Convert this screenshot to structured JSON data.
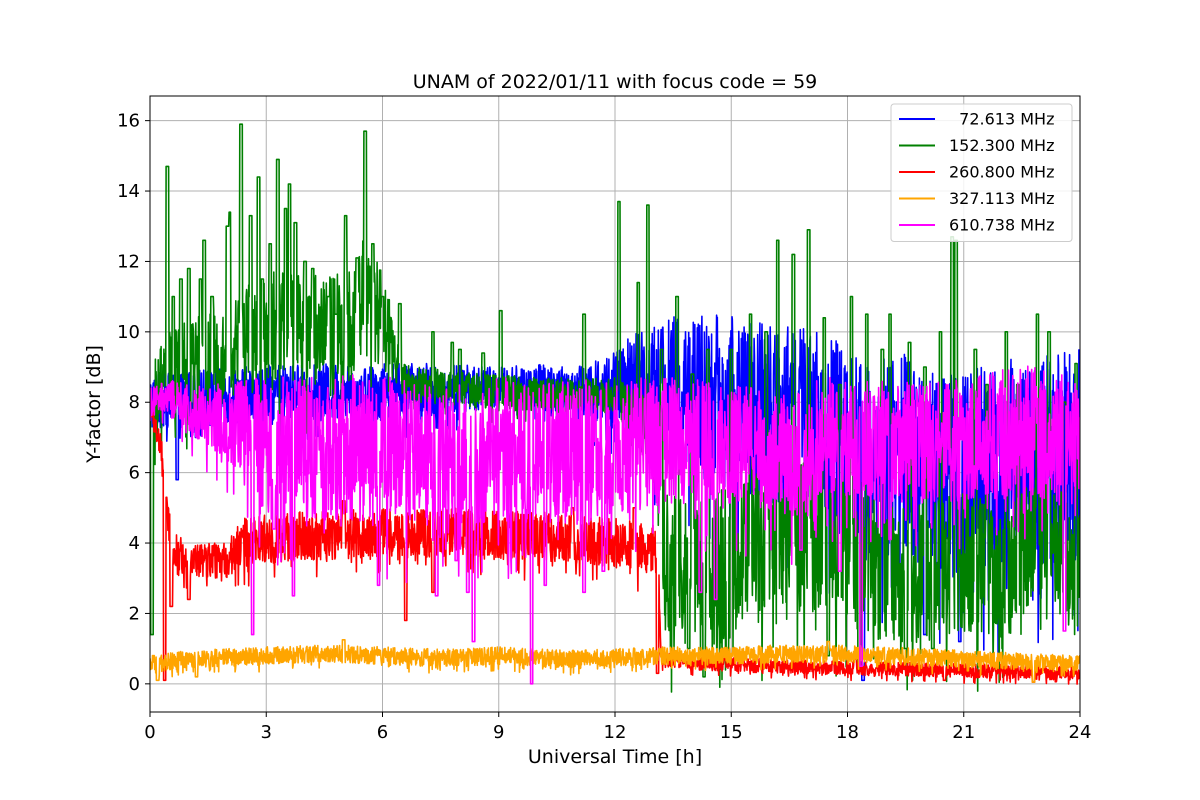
{
  "chart_data": {
    "type": "line",
    "title": "UNAM of 2022/01/11 with focus code = 59",
    "xlabel": "Universal Time [h]",
    "ylabel": "Y-factor [dB]",
    "xlim": [
      0,
      24
    ],
    "ylim": [
      -0.8,
      16.7
    ],
    "xticks": [
      0,
      3,
      6,
      9,
      12,
      15,
      18,
      21,
      24
    ],
    "yticks": [
      0,
      2,
      4,
      6,
      8,
      10,
      12,
      14,
      16
    ],
    "grid": true,
    "legend_position": "top-right",
    "series": [
      {
        "name": "  72.613 MHz",
        "color": "#0000ff",
        "baseline": [
          [
            0,
            8.0
          ],
          [
            1,
            8.1
          ],
          [
            2,
            8.2
          ],
          [
            4,
            8.3
          ],
          [
            6,
            8.3
          ],
          [
            8,
            8.4
          ],
          [
            9,
            8.4
          ],
          [
            10,
            8.5
          ],
          [
            11,
            8.4
          ],
          [
            12,
            8.3
          ],
          [
            13,
            8.4
          ],
          [
            15,
            8.0
          ],
          [
            17,
            7.6
          ],
          [
            18,
            7.0
          ],
          [
            19,
            6.5
          ],
          [
            20,
            6.2
          ],
          [
            21,
            6.0
          ],
          [
            22,
            6.2
          ],
          [
            24,
            6.5
          ]
        ],
        "band": [
          [
            0,
            0.8
          ],
          [
            6,
            0.8
          ],
          [
            8,
            0.7
          ],
          [
            9,
            0.6
          ],
          [
            11,
            0.6
          ],
          [
            12,
            1.2
          ],
          [
            13,
            2.0
          ],
          [
            15,
            2.5
          ],
          [
            17,
            2.5
          ],
          [
            19,
            3.0
          ],
          [
            21,
            3.0
          ],
          [
            24,
            3.0
          ]
        ],
        "spikes": [
          [
            0.7,
            5.8
          ],
          [
            1.2,
            7.0
          ],
          [
            16.7,
            4.0
          ],
          [
            20.0,
            1.4
          ],
          [
            20.9,
            1.2
          ],
          [
            18.4,
            0.1
          ]
        ]
      },
      {
        "name": "152.300 MHz",
        "color": "#008000",
        "baseline": [
          [
            0,
            7.5
          ],
          [
            0.3,
            8.6
          ],
          [
            1,
            9.0
          ],
          [
            2,
            9.5
          ],
          [
            3,
            10.0
          ],
          [
            4,
            10.2
          ],
          [
            5,
            9.8
          ],
          [
            5.5,
            11.0
          ],
          [
            6,
            10.5
          ],
          [
            6.5,
            8.6
          ],
          [
            8,
            8.4
          ],
          [
            10,
            8.2
          ],
          [
            12,
            8.2
          ],
          [
            13,
            7.0
          ],
          [
            13.3,
            3.5
          ],
          [
            14,
            3.0
          ],
          [
            15,
            3.5
          ],
          [
            16,
            4.0
          ],
          [
            17,
            4.5
          ],
          [
            18,
            4.0
          ],
          [
            19,
            3.0
          ],
          [
            20,
            3.2
          ],
          [
            21,
            3.5
          ],
          [
            22,
            3.0
          ],
          [
            23,
            4.5
          ],
          [
            24,
            3.0
          ]
        ],
        "band": [
          [
            0,
            1.2
          ],
          [
            2,
            1.5
          ],
          [
            3,
            1.8
          ],
          [
            5,
            1.8
          ],
          [
            6,
            1.5
          ],
          [
            6.5,
            0.5
          ],
          [
            12,
            0.5
          ],
          [
            13,
            1.0
          ],
          [
            13.3,
            2.0
          ],
          [
            15,
            2.2
          ],
          [
            17,
            2.5
          ],
          [
            19,
            2.0
          ],
          [
            21,
            2.0
          ],
          [
            24,
            1.8
          ]
        ],
        "spikes": [
          [
            0.45,
            14.7
          ],
          [
            0.6,
            11.0
          ],
          [
            0.8,
            11.5
          ],
          [
            1.0,
            11.8
          ],
          [
            1.3,
            11.5
          ],
          [
            1.4,
            12.6
          ],
          [
            1.6,
            11.0
          ],
          [
            2.0,
            13.0
          ],
          [
            2.05,
            13.4
          ],
          [
            2.35,
            15.9
          ],
          [
            2.6,
            13.3
          ],
          [
            2.8,
            14.4
          ],
          [
            2.9,
            11.5
          ],
          [
            3.1,
            12.5
          ],
          [
            3.3,
            14.9
          ],
          [
            3.5,
            13.5
          ],
          [
            3.6,
            14.2
          ],
          [
            3.75,
            13.1
          ],
          [
            4.0,
            12.0
          ],
          [
            4.2,
            11.8
          ],
          [
            4.6,
            11.0
          ],
          [
            4.8,
            10.5
          ],
          [
            5.05,
            13.3
          ],
          [
            5.35,
            12.1
          ],
          [
            5.55,
            15.7
          ],
          [
            5.75,
            12.5
          ],
          [
            6.0,
            11.0
          ],
          [
            6.45,
            10.8
          ],
          [
            7.3,
            10.0
          ],
          [
            7.8,
            9.7
          ],
          [
            8.0,
            9.5
          ],
          [
            8.6,
            9.4
          ],
          [
            9.05,
            10.6
          ],
          [
            11.2,
            10.5
          ],
          [
            11.6,
            8.0
          ],
          [
            12.1,
            13.7
          ],
          [
            12.6,
            11.4
          ],
          [
            12.85,
            13.6
          ],
          [
            13.2,
            9.5
          ],
          [
            13.6,
            11.0
          ],
          [
            14.0,
            8.8
          ],
          [
            14.4,
            9.5
          ],
          [
            15.0,
            9.5
          ],
          [
            15.5,
            10.5
          ],
          [
            15.9,
            10.0
          ],
          [
            16.2,
            12.6
          ],
          [
            16.6,
            12.2
          ],
          [
            17.0,
            12.9
          ],
          [
            17.4,
            10.4
          ],
          [
            17.8,
            8.5
          ],
          [
            18.1,
            11.0
          ],
          [
            18.5,
            10.5
          ],
          [
            18.9,
            9.5
          ],
          [
            19.1,
            10.5
          ],
          [
            19.6,
            9.7
          ],
          [
            20.0,
            9.0
          ],
          [
            20.4,
            10.0
          ],
          [
            20.7,
            12.7
          ],
          [
            20.8,
            12.6
          ],
          [
            21.3,
            9.5
          ],
          [
            21.6,
            8.5
          ],
          [
            22.1,
            10.0
          ],
          [
            22.4,
            8.5
          ],
          [
            22.9,
            10.5
          ],
          [
            23.2,
            10.0
          ],
          [
            23.6,
            8.0
          ],
          [
            13.9,
            1.0
          ],
          [
            14.3,
            0.2
          ],
          [
            14.9,
            0.5
          ],
          [
            17.5,
            0.8
          ],
          [
            18.3,
            0.5
          ],
          [
            19.5,
            1.0
          ],
          [
            20.2,
            1.0
          ],
          [
            0.05,
            1.4
          ],
          [
            23.9,
            9.1
          ]
        ]
      },
      {
        "name": "260.800 MHz",
        "color": "#ff0000",
        "baseline": [
          [
            0,
            8.0
          ],
          [
            0.3,
            6.5
          ],
          [
            0.4,
            5.0
          ],
          [
            0.6,
            3.8
          ],
          [
            1,
            3.5
          ],
          [
            2,
            3.5
          ],
          [
            2.3,
            4.0
          ],
          [
            3,
            4.1
          ],
          [
            4,
            4.2
          ],
          [
            6,
            4.3
          ],
          [
            8,
            4.3
          ],
          [
            9,
            4.2
          ],
          [
            10,
            4.2
          ],
          [
            12,
            4.0
          ],
          [
            13.1,
            3.8
          ],
          [
            13.2,
            0.7
          ],
          [
            14,
            0.6
          ],
          [
            16,
            0.5
          ],
          [
            18,
            0.45
          ],
          [
            20,
            0.4
          ],
          [
            22,
            0.35
          ],
          [
            24,
            0.3
          ]
        ],
        "band": [
          [
            0,
            0.4
          ],
          [
            0.6,
            0.5
          ],
          [
            2,
            0.5
          ],
          [
            2.3,
            0.7
          ],
          [
            6,
            0.7
          ],
          [
            9,
            0.7
          ],
          [
            13.1,
            0.7
          ],
          [
            13.2,
            0.2
          ],
          [
            24,
            0.2
          ]
        ],
        "spikes": [
          [
            0.38,
            0.1
          ],
          [
            0.4,
            5.3
          ],
          [
            0.55,
            2.2
          ],
          [
            1.0,
            2.4
          ],
          [
            6.6,
            1.8
          ],
          [
            7.3,
            2.6
          ],
          [
            5.0,
            5.2
          ],
          [
            10.9,
            5.0
          ],
          [
            12.5,
            5.0
          ],
          [
            13.1,
            0.3
          ],
          [
            18.2,
            0.7
          ],
          [
            20.5,
            0.1
          ],
          [
            22.8,
            0.05
          ]
        ]
      },
      {
        "name": "327.113 MHz",
        "color": "#ffa500",
        "baseline": [
          [
            0,
            0.55
          ],
          [
            1,
            0.7
          ],
          [
            2,
            0.75
          ],
          [
            3,
            0.8
          ],
          [
            4,
            0.85
          ],
          [
            5,
            0.85
          ],
          [
            6,
            0.8
          ],
          [
            7,
            0.75
          ],
          [
            8,
            0.75
          ],
          [
            9,
            0.8
          ],
          [
            10,
            0.75
          ],
          [
            11,
            0.7
          ],
          [
            12,
            0.75
          ],
          [
            13,
            0.8
          ],
          [
            14,
            0.8
          ],
          [
            15,
            0.8
          ],
          [
            16,
            0.85
          ],
          [
            17,
            0.85
          ],
          [
            18,
            0.85
          ],
          [
            19,
            0.8
          ],
          [
            20,
            0.75
          ],
          [
            21,
            0.7
          ],
          [
            22,
            0.65
          ],
          [
            23,
            0.6
          ],
          [
            24,
            0.55
          ]
        ],
        "band": [
          [
            0,
            0.25
          ],
          [
            24,
            0.25
          ]
        ],
        "spikes": [
          [
            0.2,
            0.1
          ],
          [
            1.2,
            0.2
          ],
          [
            22.8,
            0.05
          ],
          [
            5.0,
            1.25
          ],
          [
            17.5,
            1.2
          ]
        ]
      },
      {
        "name": "610.738 MHz",
        "color": "#ff00ff",
        "baseline": [
          [
            0,
            8.0
          ],
          [
            0.5,
            8.1
          ],
          [
            1,
            7.8
          ],
          [
            2,
            7.5
          ],
          [
            3,
            6.8
          ],
          [
            4,
            6.7
          ],
          [
            5,
            6.7
          ],
          [
            6,
            6.7
          ],
          [
            7,
            6.6
          ],
          [
            8,
            6.6
          ],
          [
            9,
            6.6
          ],
          [
            10,
            6.6
          ],
          [
            11,
            6.6
          ],
          [
            12,
            6.7
          ],
          [
            13,
            6.9
          ],
          [
            14,
            6.9
          ],
          [
            15,
            6.8
          ],
          [
            16,
            6.6
          ],
          [
            17,
            6.5
          ],
          [
            17.2,
            7.0
          ],
          [
            18,
            7.0
          ],
          [
            19,
            6.9
          ],
          [
            20,
            6.8
          ],
          [
            21,
            6.9
          ],
          [
            22,
            7.1
          ],
          [
            23,
            7.2
          ],
          [
            24,
            7.0
          ]
        ],
        "band": [
          [
            0,
            0.4
          ],
          [
            1,
            0.7
          ],
          [
            2,
            1.2
          ],
          [
            3,
            2.0
          ],
          [
            6,
            2.1
          ],
          [
            9,
            2.1
          ],
          [
            12,
            2.0
          ],
          [
            14,
            1.8
          ],
          [
            15,
            1.7
          ],
          [
            17,
            1.8
          ],
          [
            17.2,
            1.7
          ],
          [
            19,
            1.7
          ],
          [
            21,
            1.8
          ],
          [
            23,
            1.9
          ],
          [
            24,
            1.7
          ]
        ],
        "spikes": [
          [
            2.65,
            1.4
          ],
          [
            3.7,
            2.5
          ],
          [
            3.2,
            4.4
          ],
          [
            7.4,
            2.5
          ],
          [
            8.2,
            2.6
          ],
          [
            8.35,
            1.2
          ],
          [
            9.85,
            0.0
          ],
          [
            10.2,
            2.8
          ],
          [
            11.2,
            2.6
          ],
          [
            11.7,
            3.2
          ],
          [
            14.2,
            2.6
          ],
          [
            14.6,
            2.4
          ],
          [
            17.8,
            3.2
          ],
          [
            18.35,
            0.5
          ],
          [
            19.1,
            4.1
          ],
          [
            23.6,
            1.5
          ],
          [
            7.9,
            3.5
          ],
          [
            5.9,
            2.8
          ],
          [
            16.8,
            3.8
          ]
        ]
      }
    ]
  }
}
